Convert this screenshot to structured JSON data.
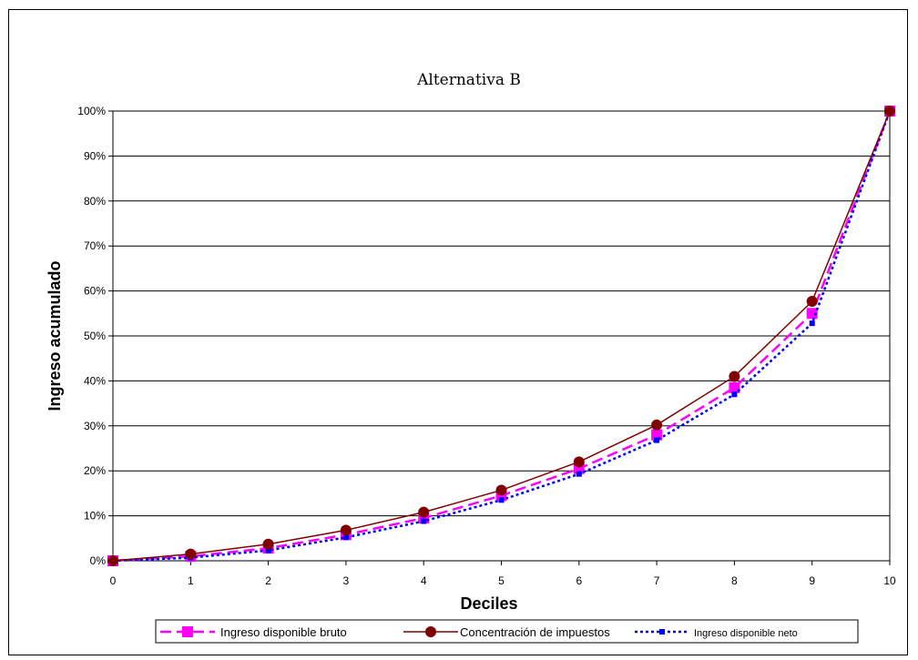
{
  "chart_data": {
    "type": "line",
    "title": "Alternativa B",
    "xlabel": "Deciles",
    "ylabel": "Ingreso acumulado",
    "x": [
      0,
      1,
      2,
      3,
      4,
      5,
      6,
      7,
      8,
      9,
      10
    ],
    "x_ticks": [
      "0",
      "1",
      "2",
      "3",
      "4",
      "5",
      "6",
      "7",
      "8",
      "9",
      "10"
    ],
    "xlim": [
      0,
      10
    ],
    "ylim": [
      0,
      100
    ],
    "y_ticks": [
      "0%",
      "10%",
      "20%",
      "30%",
      "40%",
      "50%",
      "60%",
      "70%",
      "80%",
      "90%",
      "100%"
    ],
    "grid": "horizontal",
    "legend_position": "bottom",
    "series": [
      {
        "name": "Ingreso disponible bruto",
        "values": [
          0,
          1,
          2.8,
          5.8,
          9.5,
          14.5,
          20.5,
          28,
          38.5,
          55,
          100
        ],
        "color": "#ff00ff",
        "style": "dashed",
        "marker": "square"
      },
      {
        "name": "Concentración de impuestos",
        "values": [
          0,
          1.5,
          3.7,
          6.8,
          10.8,
          15.7,
          22,
          30.2,
          41,
          57.7,
          100
        ],
        "color": "#800000",
        "style": "solid",
        "marker": "circle"
      },
      {
        "name": "Ingreso disponible neto",
        "values": [
          0,
          0.7,
          2.3,
          5.2,
          8.8,
          13.5,
          19.3,
          26.8,
          37,
          52.8,
          100
        ],
        "color": "#0000ff",
        "style": "dotted",
        "marker": "square-small"
      }
    ]
  }
}
